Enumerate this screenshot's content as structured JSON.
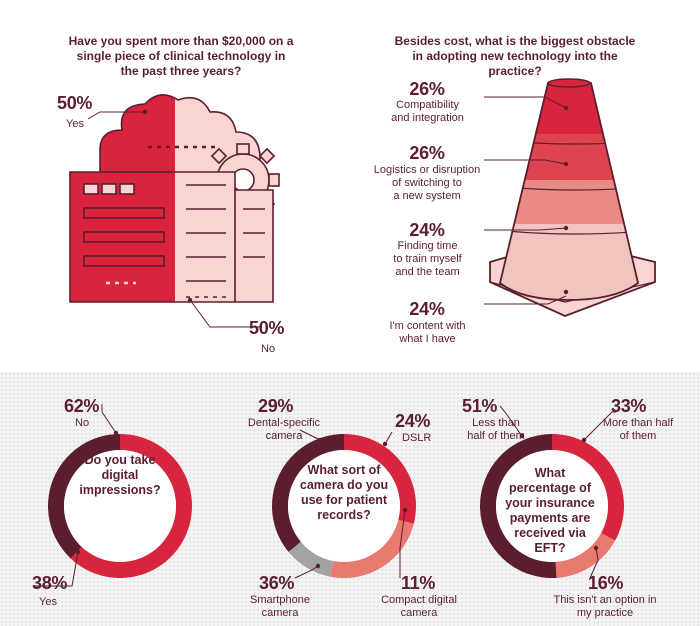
{
  "colors": {
    "red": "#d9243e",
    "dark": "#5a1e2e",
    "salmon": "#e87a6e",
    "gray": "#a3a3a3",
    "pink": "#f2c4c0",
    "light_pink": "#f8dcd8"
  },
  "chart_data": [
    {
      "type": "pie",
      "question": "Have you spent more than $20,000 on a single piece of clinical technology in the past three years?",
      "slices": [
        {
          "label": "Yes",
          "value": 50,
          "display": "50%"
        },
        {
          "label": "No",
          "value": 50,
          "display": "50%"
        }
      ]
    },
    {
      "type": "bar",
      "question": "Besides cost, what is the biggest obstacle in adopting new technology into the practice?",
      "categories": [
        "Compatibility and integration",
        "Logistics or disruption of switching to a new system",
        "Finding time to train myself and the team",
        "I'm content with what I have"
      ],
      "values": [
        26,
        26,
        24,
        24
      ],
      "items": [
        {
          "display": "26%",
          "label_lines": [
            "Compatibility",
            "and integration"
          ]
        },
        {
          "display": "26%",
          "label_lines": [
            "Logistics or disruption",
            "of switching to",
            "a new system"
          ]
        },
        {
          "display": "24%",
          "label_lines": [
            "Finding time",
            "to train myself",
            "and the team"
          ]
        },
        {
          "display": "24%",
          "label_lines": [
            "I'm content with",
            "what I have"
          ]
        }
      ]
    },
    {
      "type": "pie",
      "question": "Do you take digital impressions?",
      "slices": [
        {
          "label": "No",
          "value": 62,
          "display": "62%",
          "color": "#d9243e"
        },
        {
          "label": "Yes",
          "value": 38,
          "display": "38%",
          "color": "#5a1e2e"
        }
      ]
    },
    {
      "type": "pie",
      "question": "What sort of camera do you use for patient records?",
      "slices": [
        {
          "label": "Dental-specific camera",
          "value": 29,
          "display": "29%",
          "color": "#d9243e"
        },
        {
          "label": "DSLR",
          "value": 24,
          "display": "24%",
          "color": "#e87a6e"
        },
        {
          "label": "Compact digital camera",
          "value": 11,
          "display": "11%",
          "color": "#a3a3a3"
        },
        {
          "label": "Smartphone camera",
          "value": 36,
          "display": "36%",
          "color": "#5a1e2e"
        }
      ]
    },
    {
      "type": "pie",
      "question": "What percentage of your insurance payments are received via EFT?",
      "slices": [
        {
          "label": "More than half of them",
          "value": 33,
          "display": "33%",
          "color": "#d9243e"
        },
        {
          "label": "This isn't an option in my practice",
          "value": 16,
          "display": "16%",
          "color": "#e87a6e"
        },
        {
          "label": "Less than half of them",
          "value": 51,
          "display": "51%",
          "color": "#5a1e2e"
        }
      ]
    }
  ]
}
